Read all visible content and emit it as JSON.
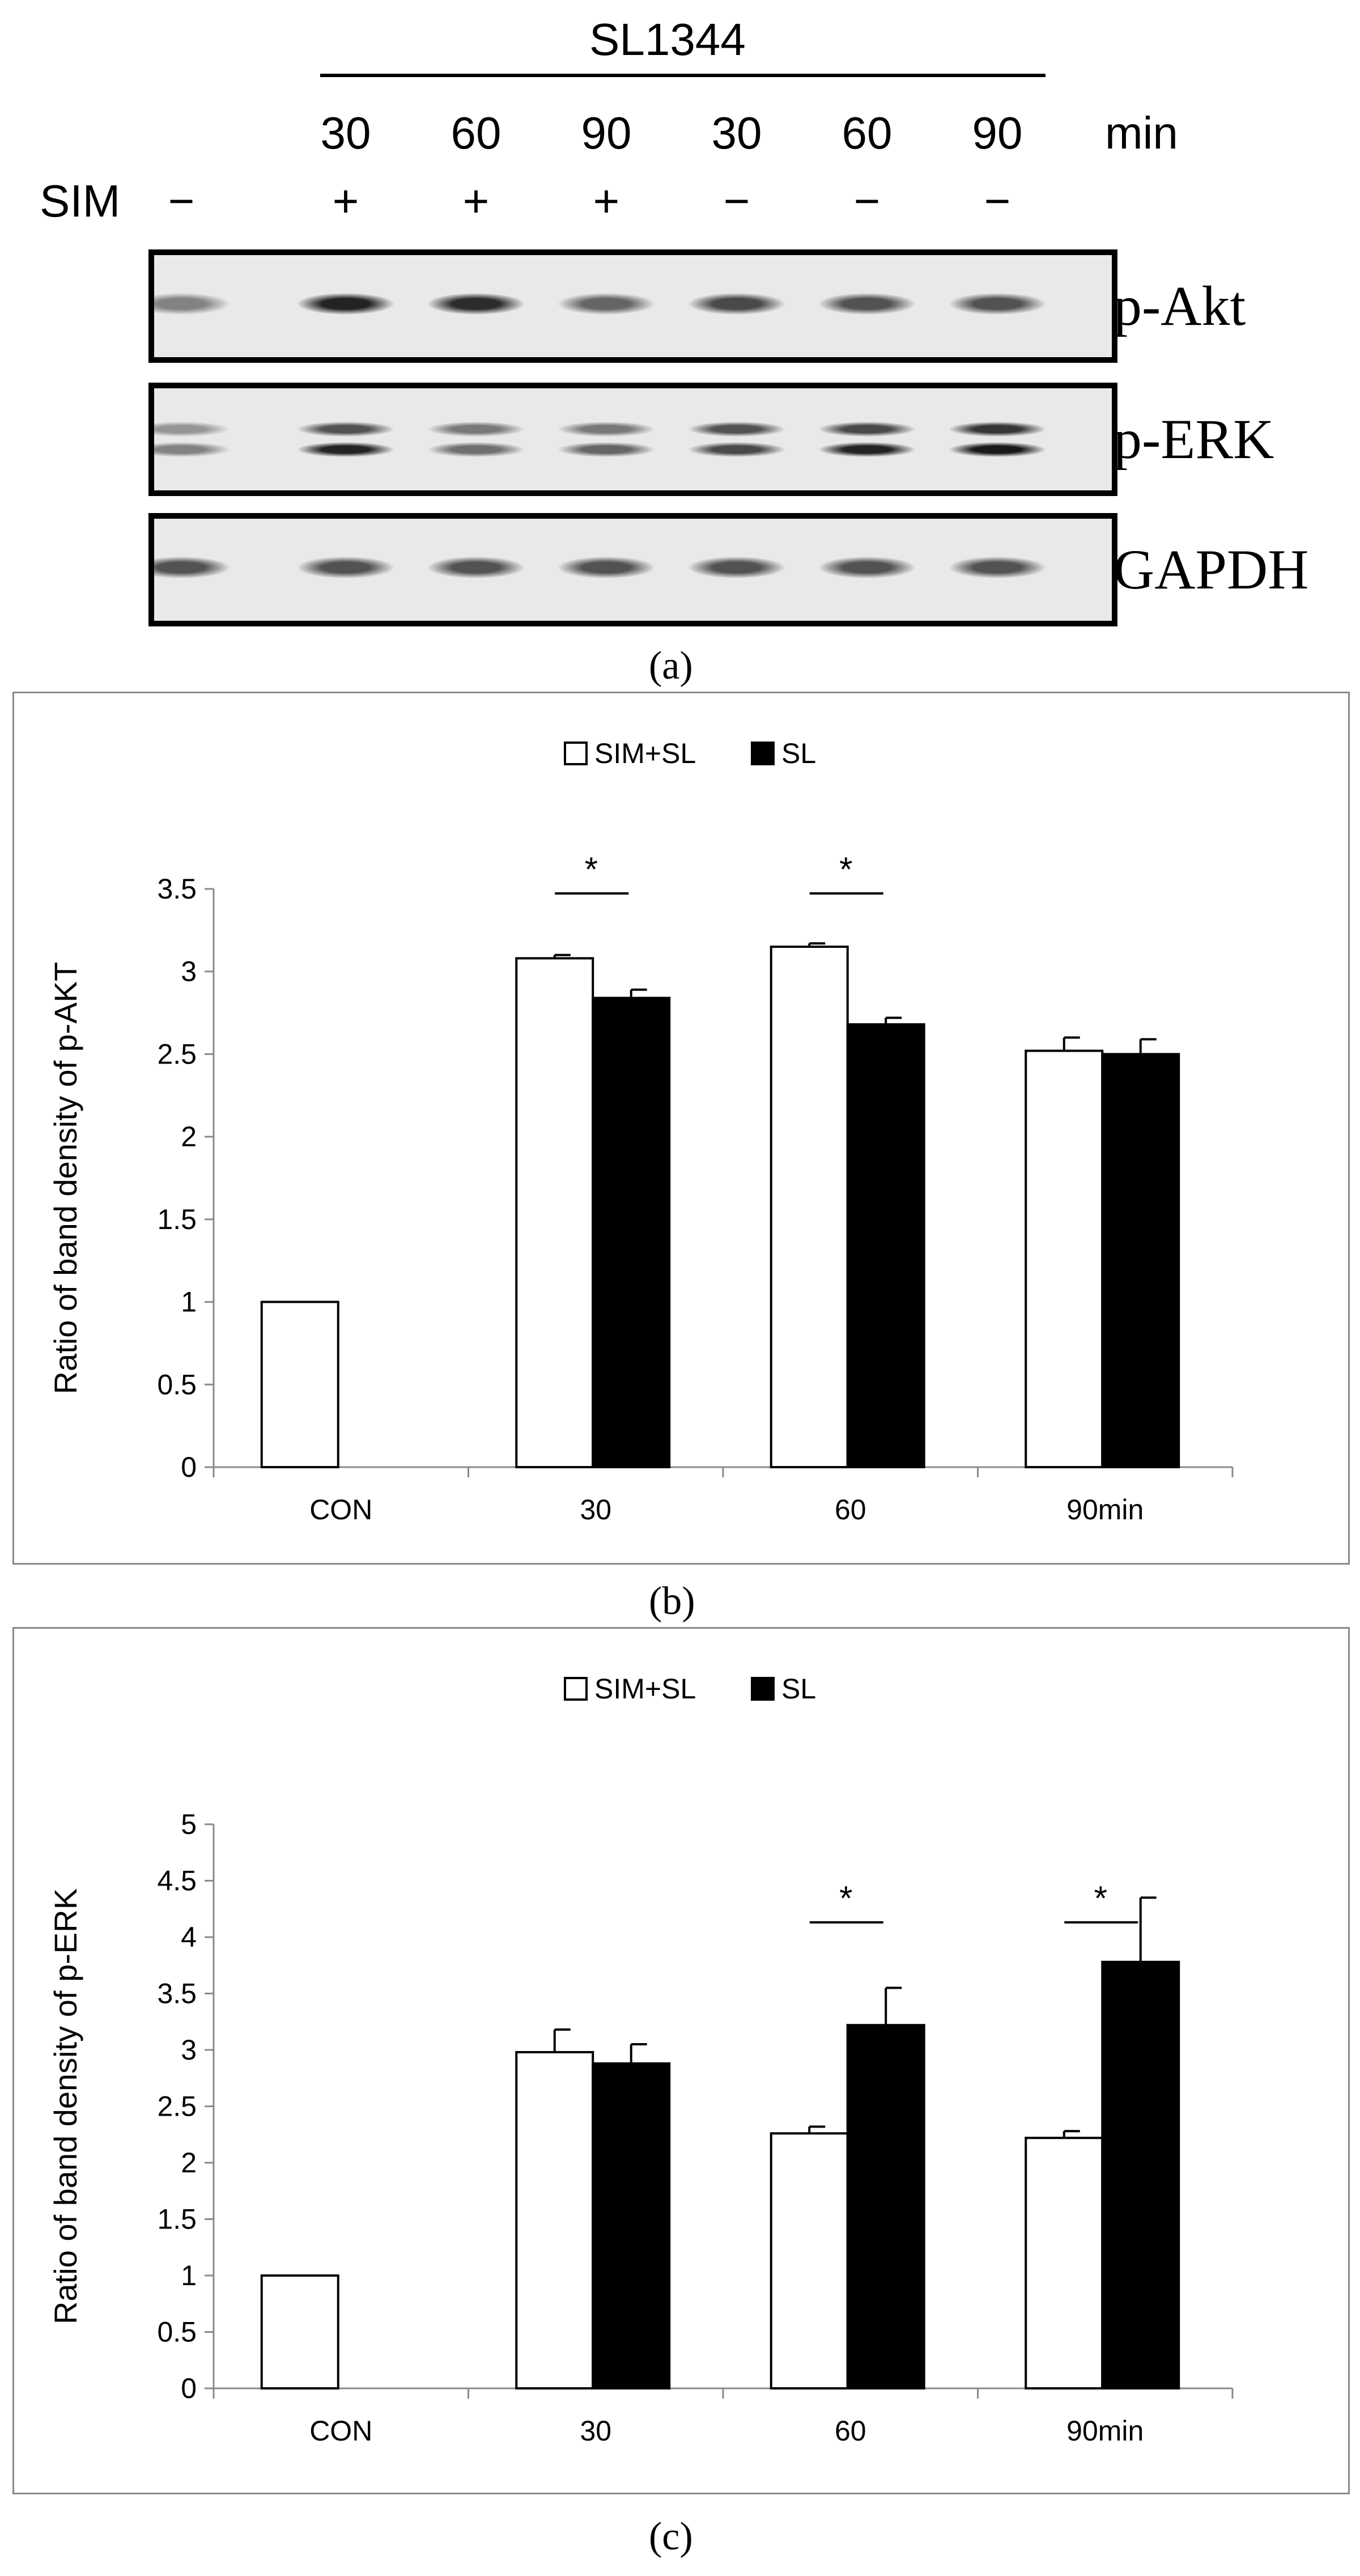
{
  "panel_a": {
    "strain": "SL1344",
    "time_unit": "min",
    "sim_label": "SIM",
    "lanes": [
      {
        "time": "",
        "sim": "−"
      },
      {
        "time": "30",
        "sim": "+"
      },
      {
        "time": "60",
        "sim": "+"
      },
      {
        "time": "90",
        "sim": "+"
      },
      {
        "time": "30",
        "sim": "−"
      },
      {
        "time": "60",
        "sim": "−"
      },
      {
        "time": "90",
        "sim": "−"
      }
    ],
    "blots": [
      {
        "label": "p-Akt",
        "bands": [
          [
            0.45
          ],
          [
            0.95
          ],
          [
            0.9
          ],
          [
            0.6
          ],
          [
            0.75
          ],
          [
            0.7
          ],
          [
            0.7
          ]
        ],
        "double": false
      },
      {
        "label": "p-ERK",
        "bands": [
          [
            0.35,
            0.45
          ],
          [
            0.7,
            0.95
          ],
          [
            0.5,
            0.55
          ],
          [
            0.5,
            0.6
          ],
          [
            0.7,
            0.75
          ],
          [
            0.75,
            0.95
          ],
          [
            0.85,
            1.0
          ]
        ],
        "double": true
      },
      {
        "label": "GAPDH",
        "bands": [
          [
            0.7
          ],
          [
            0.7
          ],
          [
            0.7
          ],
          [
            0.7
          ],
          [
            0.7
          ],
          [
            0.7
          ],
          [
            0.7
          ]
        ],
        "double": false
      }
    ],
    "caption": "(a)"
  },
  "charts": [
    {
      "id": "b",
      "caption": "(b)",
      "chart_data": {
        "type": "bar",
        "ylabel": "Ratio of band density of p-AKT",
        "categories": [
          "CON",
          "30",
          "60",
          "90min"
        ],
        "series": [
          {
            "name": "SIM+SL",
            "color": "#ffffff",
            "values": [
              1.0,
              3.08,
              3.15,
              2.52
            ],
            "errors": [
              0,
              0.02,
              0.02,
              0.08
            ]
          },
          {
            "name": "SL",
            "color": "#000000",
            "values": [
              null,
              2.84,
              2.68,
              2.5
            ],
            "errors": [
              0,
              0.05,
              0.04,
              0.09
            ]
          }
        ],
        "ylim": [
          0,
          3.5
        ],
        "yticks": [
          "0",
          "0.5",
          "1",
          "1.5",
          "2",
          "2.5",
          "3",
          "3.5"
        ],
        "significance": [
          {
            "category": 1,
            "label": "*"
          },
          {
            "category": 2,
            "label": "*"
          }
        ],
        "legend_position": "top"
      }
    },
    {
      "id": "c",
      "caption": "(c)",
      "chart_data": {
        "type": "bar",
        "ylabel": "Ratio of band density of p-ERK",
        "categories": [
          "CON",
          "30",
          "60",
          "90min"
        ],
        "series": [
          {
            "name": "SIM+SL",
            "color": "#ffffff",
            "values": [
              1.0,
              2.98,
              2.26,
              2.22
            ],
            "errors": [
              0,
              0.2,
              0.06,
              0.06
            ]
          },
          {
            "name": "SL",
            "color": "#000000",
            "values": [
              null,
              2.88,
              3.22,
              3.78
            ],
            "errors": [
              0,
              0.17,
              0.33,
              0.57
            ]
          }
        ],
        "ylim": [
          0,
          5
        ],
        "yticks": [
          "0",
          "0.5",
          "1",
          "1.5",
          "2",
          "2.5",
          "3",
          "3.5",
          "4",
          "4.5",
          "5"
        ],
        "significance": [
          {
            "category": 2,
            "label": "*"
          },
          {
            "category": 3,
            "label": "*"
          }
        ],
        "legend_position": "top"
      }
    }
  ]
}
